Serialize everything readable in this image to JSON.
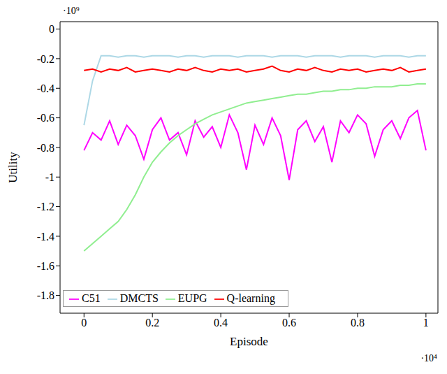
{
  "chart_data": {
    "type": "line",
    "x_label": "Episode",
    "y_label": "Utility",
    "annotations": {
      "y_axis": "·10⁹",
      "x_axis": "·10⁴"
    },
    "x": [
      0,
      0.025,
      0.05,
      0.075,
      0.1,
      0.125,
      0.15,
      0.175,
      0.2,
      0.225,
      0.25,
      0.275,
      0.3,
      0.325,
      0.35,
      0.375,
      0.4,
      0.425,
      0.45,
      0.475,
      0.5,
      0.525,
      0.55,
      0.575,
      0.6,
      0.625,
      0.65,
      0.675,
      0.7,
      0.725,
      0.75,
      0.775,
      0.8,
      0.825,
      0.85,
      0.875,
      0.9,
      0.925,
      0.95,
      0.975,
      1
    ],
    "series": [
      {
        "name": "DMCTS",
        "color": "#add8e6",
        "values": [
          -0.65,
          -0.35,
          -0.18,
          -0.18,
          -0.19,
          -0.18,
          -0.18,
          -0.19,
          -0.18,
          -0.18,
          -0.18,
          -0.19,
          -0.18,
          -0.18,
          -0.19,
          -0.18,
          -0.18,
          -0.18,
          -0.19,
          -0.18,
          -0.18,
          -0.18,
          -0.19,
          -0.18,
          -0.18,
          -0.18,
          -0.19,
          -0.18,
          -0.18,
          -0.18,
          -0.19,
          -0.18,
          -0.18,
          -0.18,
          -0.19,
          -0.18,
          -0.18,
          -0.18,
          -0.19,
          -0.18,
          -0.18
        ]
      },
      {
        "name": "Q-learning",
        "color": "#ff0000",
        "values": [
          -0.28,
          -0.27,
          -0.29,
          -0.27,
          -0.28,
          -0.26,
          -0.29,
          -0.28,
          -0.27,
          -0.28,
          -0.29,
          -0.27,
          -0.28,
          -0.26,
          -0.28,
          -0.29,
          -0.27,
          -0.28,
          -0.27,
          -0.29,
          -0.28,
          -0.27,
          -0.25,
          -0.28,
          -0.29,
          -0.27,
          -0.28,
          -0.26,
          -0.28,
          -0.29,
          -0.27,
          -0.28,
          -0.27,
          -0.29,
          -0.28,
          -0.27,
          -0.28,
          -0.26,
          -0.29,
          -0.28,
          -0.27
        ]
      },
      {
        "name": "C51",
        "color": "#ff00ff",
        "values": [
          -0.82,
          -0.7,
          -0.75,
          -0.62,
          -0.78,
          -0.65,
          -0.72,
          -0.88,
          -0.68,
          -0.6,
          -0.75,
          -0.7,
          -0.85,
          -0.62,
          -0.73,
          -0.66,
          -0.8,
          -0.58,
          -0.7,
          -0.95,
          -0.65,
          -0.78,
          -0.6,
          -0.72,
          -1.02,
          -0.68,
          -0.62,
          -0.76,
          -0.66,
          -0.9,
          -0.62,
          -0.7,
          -0.58,
          -0.64,
          -0.86,
          -0.68,
          -0.62,
          -0.74,
          -0.6,
          -0.55,
          -0.82
        ]
      },
      {
        "name": "EUPG",
        "color": "#90ee90",
        "values": [
          -1.5,
          -1.45,
          -1.4,
          -1.35,
          -1.3,
          -1.22,
          -1.12,
          -1.0,
          -0.9,
          -0.83,
          -0.77,
          -0.72,
          -0.68,
          -0.64,
          -0.61,
          -0.58,
          -0.56,
          -0.54,
          -0.52,
          -0.5,
          -0.49,
          -0.48,
          -0.47,
          -0.46,
          -0.45,
          -0.44,
          -0.44,
          -0.43,
          -0.42,
          -0.42,
          -0.41,
          -0.41,
          -0.4,
          -0.4,
          -0.39,
          -0.39,
          -0.39,
          -0.38,
          -0.38,
          -0.37,
          -0.37
        ]
      }
    ],
    "xlim": [
      -0.07,
      1.035
    ],
    "xticks": [
      0,
      0.2,
      0.4,
      0.6,
      0.8,
      1
    ],
    "ylim": [
      -1.92,
      0.05
    ],
    "yticks": [
      0,
      -0.2,
      -0.4,
      -0.6,
      -0.8,
      -1,
      -1.2,
      -1.4,
      -1.6,
      -1.8
    ],
    "legend": "lower left"
  }
}
